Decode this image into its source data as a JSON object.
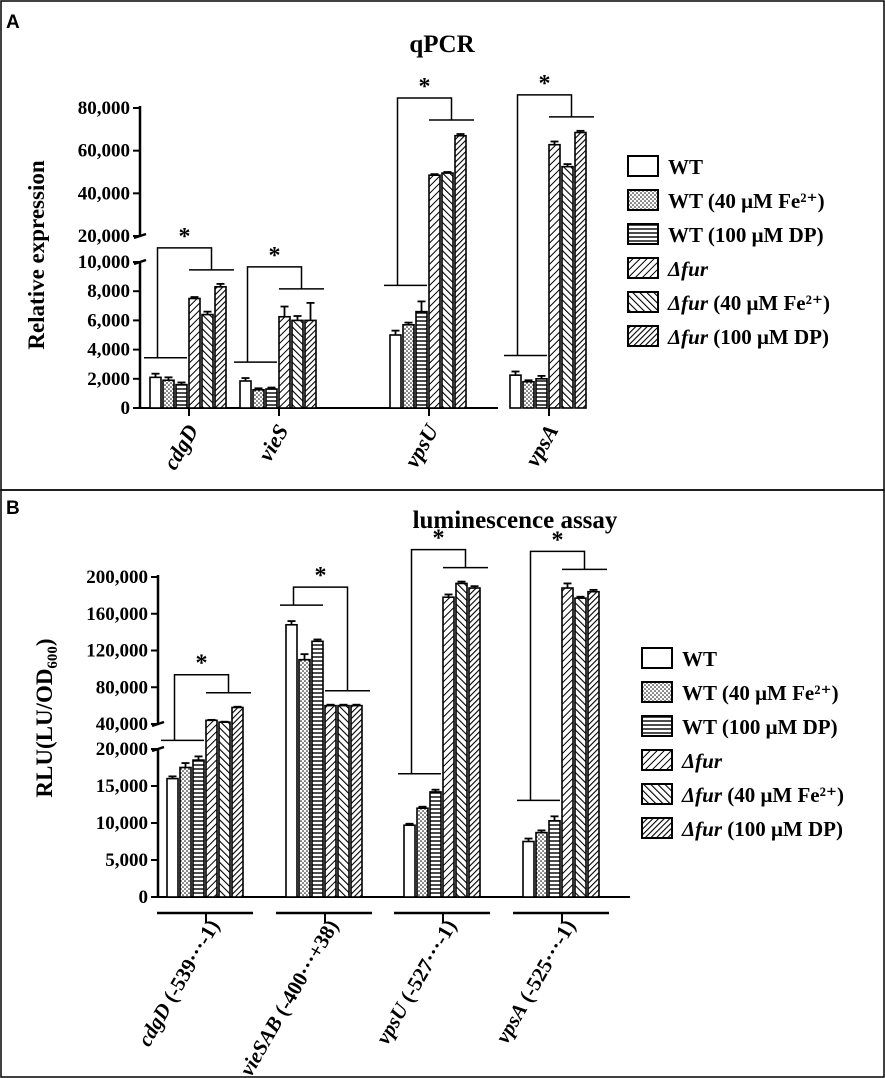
{
  "chart_data": [
    {
      "type": "bar",
      "panel_label": "A",
      "title": "qPCR",
      "ylabel": "Relative expression",
      "categories": [
        "cdgD",
        "vieS",
        "vpsU",
        "vpsA"
      ],
      "y_axis_break": {
        "lower_range": [
          0,
          10000
        ],
        "upper_range": [
          20000,
          80000
        ]
      },
      "yticks_lower": [
        "0",
        "2,000",
        "4,000",
        "6,000",
        "8,000",
        "10,000"
      ],
      "yticks_upper": [
        "20,000",
        "40,000",
        "60,000",
        "80,000"
      ],
      "significance_mark": "*",
      "series": [
        {
          "name": "WT",
          "pattern": "white",
          "values": [
            2100,
            1850,
            5000,
            2250
          ],
          "errors": [
            250,
            200,
            300,
            250
          ]
        },
        {
          "name": "WT (40 μM Fe²⁺)",
          "pattern": "dotted",
          "values": [
            1900,
            1250,
            5700,
            1800
          ],
          "errors": [
            200,
            100,
            150,
            100
          ]
        },
        {
          "name": "WT (100 μM DP)",
          "pattern": "horizontal",
          "values": [
            1600,
            1300,
            6600,
            2000
          ],
          "errors": [
            150,
            100,
            700,
            200
          ]
        },
        {
          "name": "Δfur",
          "pattern": "diag-left",
          "values": [
            7500,
            6250,
            48500,
            62800
          ],
          "errors": [
            100,
            700,
            500,
            1500
          ]
        },
        {
          "name": "Δfur (40 μM Fe²⁺)",
          "pattern": "diag-right",
          "values": [
            6400,
            6000,
            49500,
            52500
          ],
          "errors": [
            200,
            300,
            500,
            1200
          ]
        },
        {
          "name": "Δfur (100 μM DP)",
          "pattern": "diag-dense",
          "values": [
            8300,
            6000,
            67000,
            68500
          ],
          "errors": [
            200,
            1200,
            800,
            800
          ]
        }
      ],
      "legend": {
        "position": "right"
      }
    },
    {
      "type": "bar",
      "panel_label": "B",
      "title": "luminescence assay",
      "ylabel": "RLU(LU/OD600)",
      "categories": [
        "cdgD (-539···-1)",
        "vieSAB (-400···+38)",
        "vpsU (-527···-1)",
        "vpsA (-525···-1)"
      ],
      "y_axis_break": {
        "lower_range": [
          0,
          20000
        ],
        "upper_range": [
          40000,
          200000
        ]
      },
      "yticks_lower": [
        "0",
        "5,000",
        "10,000",
        "15,000",
        "20,000"
      ],
      "yticks_upper": [
        "40,000",
        "80,000",
        "120,000",
        "160,000",
        "200,000"
      ],
      "significance_mark": "*",
      "series": [
        {
          "name": "WT",
          "pattern": "white",
          "values": [
            16000,
            148000,
            9700,
            7500
          ],
          "errors": [
            300,
            4000,
            200,
            400
          ]
        },
        {
          "name": "WT (40 μM Fe²⁺)",
          "pattern": "dotted",
          "values": [
            17500,
            110000,
            12000,
            8700
          ],
          "errors": [
            600,
            6000,
            200,
            300
          ]
        },
        {
          "name": "WT (100 μM DP)",
          "pattern": "horizontal",
          "values": [
            18500,
            130000,
            14200,
            10300
          ],
          "errors": [
            500,
            2000,
            300,
            600
          ]
        },
        {
          "name": "Δfur",
          "pattern": "diag-left",
          "values": [
            44000,
            60000,
            178000,
            188000
          ],
          "errors": [
            500,
            1000,
            3000,
            5000
          ]
        },
        {
          "name": "Δfur (40 μM Fe²⁺)",
          "pattern": "diag-right",
          "values": [
            42000,
            60000,
            193000,
            177000
          ],
          "errors": [
            500,
            1000,
            2000,
            1500
          ]
        },
        {
          "name": "Δfur (100 μM DP)",
          "pattern": "diag-dense",
          "values": [
            58000,
            60000,
            188000,
            184000
          ],
          "errors": [
            800,
            1000,
            2000,
            2000
          ]
        }
      ],
      "legend": {
        "position": "right"
      }
    }
  ]
}
